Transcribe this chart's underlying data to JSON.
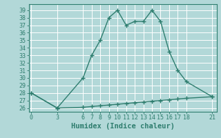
{
  "title": "",
  "xlabel": "Humidex (Indice chaleur)",
  "ylabel": "",
  "bg_color": "#b2d8d8",
  "grid_color": "#c8e8e8",
  "line_color": "#2e7d6e",
  "x_ticks": [
    0,
    3,
    6,
    7,
    8,
    9,
    10,
    11,
    12,
    13,
    14,
    15,
    16,
    17,
    18,
    21
  ],
  "y_ticks": [
    26,
    27,
    28,
    29,
    30,
    31,
    32,
    33,
    34,
    35,
    36,
    37,
    38,
    39
  ],
  "ylim": [
    25.5,
    39.8
  ],
  "xlim": [
    -0.3,
    21.5
  ],
  "upper_x": [
    0,
    3,
    6,
    7,
    8,
    9,
    10,
    11,
    12,
    13,
    14,
    15,
    16,
    17,
    18,
    21
  ],
  "upper_y": [
    28,
    26,
    30,
    33,
    35,
    38,
    39,
    37,
    37.5,
    37.5,
    39,
    37.5,
    33.5,
    31,
    29.5,
    27.5
  ],
  "lower_x": [
    0,
    3,
    6,
    7,
    8,
    9,
    10,
    11,
    12,
    13,
    14,
    15,
    16,
    17,
    18,
    21
  ],
  "lower_y": [
    28,
    26,
    26.1,
    26.2,
    26.3,
    26.4,
    26.5,
    26.6,
    26.7,
    26.8,
    26.9,
    27.0,
    27.1,
    27.2,
    27.3,
    27.5
  ],
  "marker": "+",
  "marker_size": 4,
  "line_width": 1.0,
  "font_size_ticks": 6,
  "font_size_xlabel": 7.5
}
